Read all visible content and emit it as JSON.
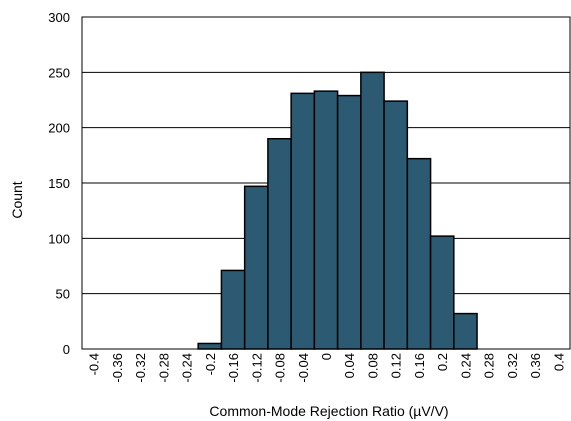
{
  "chart_data": {
    "type": "bar",
    "title": "",
    "xlabel": "Common-Mode Rejection Ratio (µV/V)",
    "ylabel": "Count",
    "ylim": [
      0,
      300
    ],
    "yticks": [
      0,
      50,
      100,
      150,
      200,
      250,
      300
    ],
    "grid": "horizontal",
    "categories": [
      "-0.4",
      "-0.36",
      "-0.32",
      "-0.28",
      "-0.24",
      "-0.2",
      "-0.16",
      "-0.12",
      "-0.08",
      "-0.04",
      "0",
      "0.04",
      "0.08",
      "0.12",
      "0.16",
      "0.2",
      "0.24",
      "0.28",
      "0.32",
      "0.36",
      "0.4"
    ],
    "values": [
      0,
      0,
      0,
      0,
      0,
      5,
      71,
      147,
      190,
      231,
      233,
      229,
      250,
      224,
      172,
      102,
      32,
      0,
      0,
      0,
      0
    ],
    "bar_color": "#2d5a73",
    "bar_edge_color": "#000000"
  }
}
